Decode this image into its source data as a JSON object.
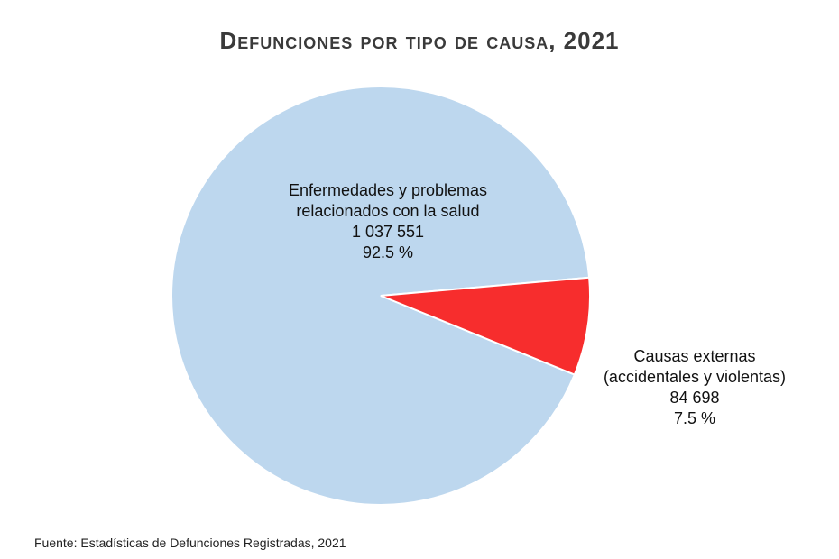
{
  "chart_data": {
    "type": "pie",
    "title": "Defunciones por tipo de causa, 2021",
    "slices": [
      {
        "label_lines": [
          "Enfermedades  y problemas",
          "relacionados con la salud"
        ],
        "value": 1037551,
        "value_text": "1 037 551",
        "percent": 92.5,
        "percent_text": "92.5 %",
        "color": "#bdd7ee"
      },
      {
        "label_lines": [
          "Causas externas",
          "(accidentales y violentas)"
        ],
        "value": 84698,
        "value_text": "84 698",
        "percent": 7.5,
        "percent_text": "7.5 %",
        "color": "#f72d2d"
      }
    ]
  },
  "footer": {
    "source": "Fuente:  Estadísticas de Defunciones Registradas, 2021"
  }
}
